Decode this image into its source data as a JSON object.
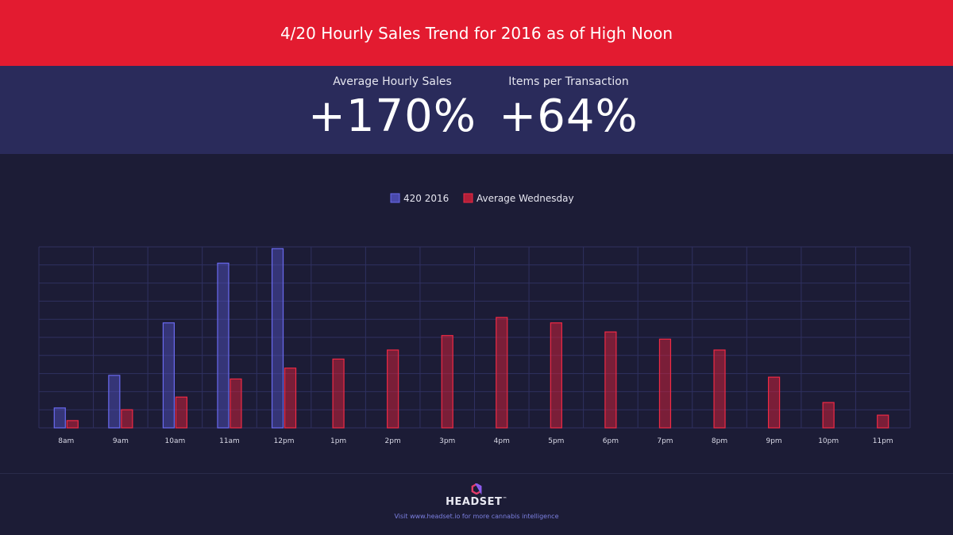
{
  "header": {
    "title": "4/20 Hourly Sales Trend for 2016 as of High Noon"
  },
  "stats": [
    {
      "label": "Average Hourly Sales",
      "value": "+170%"
    },
    {
      "label": "Items per Transaction",
      "value": "+64%"
    }
  ],
  "chart_data": {
    "type": "bar",
    "categories": [
      "8am",
      "9am",
      "10am",
      "11am",
      "12pm",
      "1pm",
      "2pm",
      "3pm",
      "4pm",
      "5pm",
      "6pm",
      "7pm",
      "8pm",
      "9pm",
      "10pm",
      "11pm"
    ],
    "series": [
      {
        "name": "420 2016",
        "values": [
          11,
          29,
          58,
          91,
          99,
          null,
          null,
          null,
          null,
          null,
          null,
          null,
          null,
          null,
          null,
          null
        ],
        "color": "#5555c8"
      },
      {
        "name": "Average Wednesday",
        "values": [
          4,
          10,
          17,
          27,
          33,
          38,
          43,
          51,
          61,
          58,
          53,
          49,
          43,
          28,
          14,
          7
        ],
        "color": "#d8203a"
      }
    ],
    "legend": "top-center",
    "grid": true,
    "ylim": [
      0,
      100
    ]
  },
  "footer": {
    "brand": "HEADSET",
    "brand_mark": "™",
    "tagline": "Visit www.headset.io for more cannabis intelligence"
  },
  "colors": {
    "title_bg": "#e31b30",
    "stats_bg": "#2a2b5b",
    "page_bg": "#1c1c36",
    "series_420": "#5555c8",
    "series_avg": "#d8203a",
    "footer_link": "#7b7fe0"
  }
}
